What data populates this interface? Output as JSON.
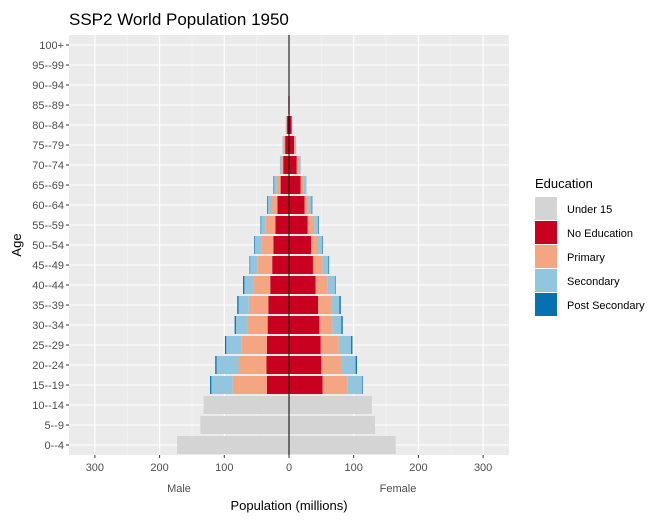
{
  "chart_data": {
    "type": "bar",
    "orientation": "horizontal-pyramid",
    "title": "SSP2 World Population 1950",
    "xlabel": "Population (millions)",
    "ylabel": "Age",
    "side_labels": {
      "left": "Male",
      "right": "Female"
    },
    "xlim": [
      -340,
      340
    ],
    "x_ticks": [
      -300,
      -200,
      -100,
      0,
      100,
      200,
      300
    ],
    "x_tick_labels": [
      "300",
      "200",
      "100",
      "0",
      "100",
      "200",
      "300"
    ],
    "grid": true,
    "legend": {
      "title": "Education",
      "placement": "right"
    },
    "categories": [
      "0--4",
      "5--9",
      "10--14",
      "15--19",
      "20--24",
      "25--29",
      "30--34",
      "35--39",
      "40--44",
      "45--49",
      "50--54",
      "55--59",
      "60--64",
      "65--69",
      "70--74",
      "75--79",
      "80--84",
      "85--89",
      "90--94",
      "95--99",
      "100+"
    ],
    "series": [
      {
        "name": "Under 15",
        "color": "#d4d4d4",
        "male": [
          173,
          137,
          132,
          0,
          0,
          0,
          0,
          0,
          0,
          0,
          0,
          0,
          0,
          0,
          0,
          0,
          0,
          0,
          0,
          0,
          0
        ],
        "female": [
          165,
          133,
          128,
          0,
          0,
          0,
          0,
          0,
          0,
          0,
          0,
          0,
          0,
          0,
          0,
          0,
          0,
          0,
          0,
          0,
          0
        ]
      },
      {
        "name": "No Education",
        "color": "#ca0020",
        "male": [
          0,
          0,
          0,
          34,
          35,
          34,
          33,
          32,
          29,
          26,
          24,
          21,
          18,
          13,
          9,
          6,
          3,
          1,
          0,
          0,
          0
        ],
        "female": [
          0,
          0,
          0,
          52,
          50,
          49,
          47,
          45,
          41,
          37,
          34,
          29,
          24,
          18,
          12,
          8,
          4,
          1,
          0,
          0,
          0
        ]
      },
      {
        "name": "Primary",
        "color": "#f4a582",
        "male": [
          0,
          0,
          0,
          53,
          43,
          39,
          31,
          30,
          26,
          23,
          19,
          15,
          9,
          6,
          3,
          2,
          1,
          0,
          0,
          0,
          0
        ],
        "female": [
          0,
          0,
          0,
          38,
          32,
          28,
          20,
          20,
          19,
          15,
          10,
          10,
          6,
          5,
          3,
          1,
          0,
          0,
          0,
          0,
          0
        ]
      },
      {
        "name": "Secondary",
        "color": "#92c5de",
        "male": [
          0,
          0,
          0,
          33,
          34,
          24,
          18,
          16,
          14,
          11,
          10,
          7,
          6,
          4,
          2,
          2,
          1,
          0,
          0,
          0,
          0
        ],
        "female": [
          0,
          0,
          0,
          23,
          21,
          19,
          14,
          13,
          11,
          9,
          7,
          6,
          5,
          4,
          3,
          2,
          1,
          0,
          0,
          0,
          0
        ]
      },
      {
        "name": "Post Secondary",
        "color": "#0571b0",
        "male": [
          0,
          0,
          0,
          2,
          2,
          2,
          2,
          2,
          2,
          1,
          1,
          1,
          1,
          1,
          0,
          0,
          0,
          0,
          0,
          0,
          0
        ],
        "female": [
          0,
          0,
          0,
          1,
          2,
          2,
          2,
          2,
          1,
          1,
          1,
          1,
          1,
          0,
          0,
          0,
          0,
          0,
          0,
          0,
          0
        ]
      }
    ]
  }
}
